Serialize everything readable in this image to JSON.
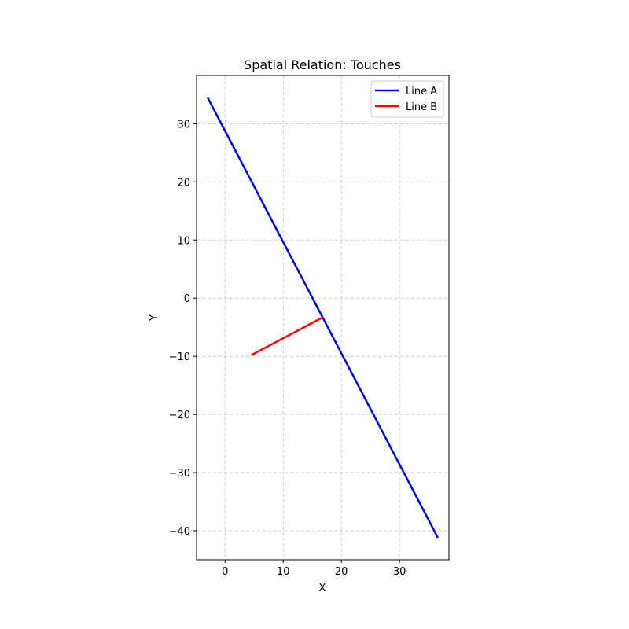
{
  "chart_data": {
    "type": "line",
    "title": "Spatial Relation: Touches",
    "xlabel": "X",
    "ylabel": "Y",
    "xlim": [
      -4.9,
      38.5
    ],
    "ylim": [
      -45.0,
      38.3
    ],
    "xticks": [
      0,
      10,
      20,
      30
    ],
    "yticks": [
      30,
      20,
      10,
      0,
      -10,
      -20,
      -30,
      -40
    ],
    "grid": true,
    "legend_position": "top-right",
    "series": [
      {
        "name": "Line A",
        "color": "#0000ff",
        "points": [
          [
            -3.0,
            34.5
          ],
          [
            36.6,
            -41.2
          ]
        ]
      },
      {
        "name": "Line B",
        "color": "#ff0000",
        "points": [
          [
            4.5,
            -9.8
          ],
          [
            16.8,
            -3.3
          ]
        ]
      }
    ]
  }
}
